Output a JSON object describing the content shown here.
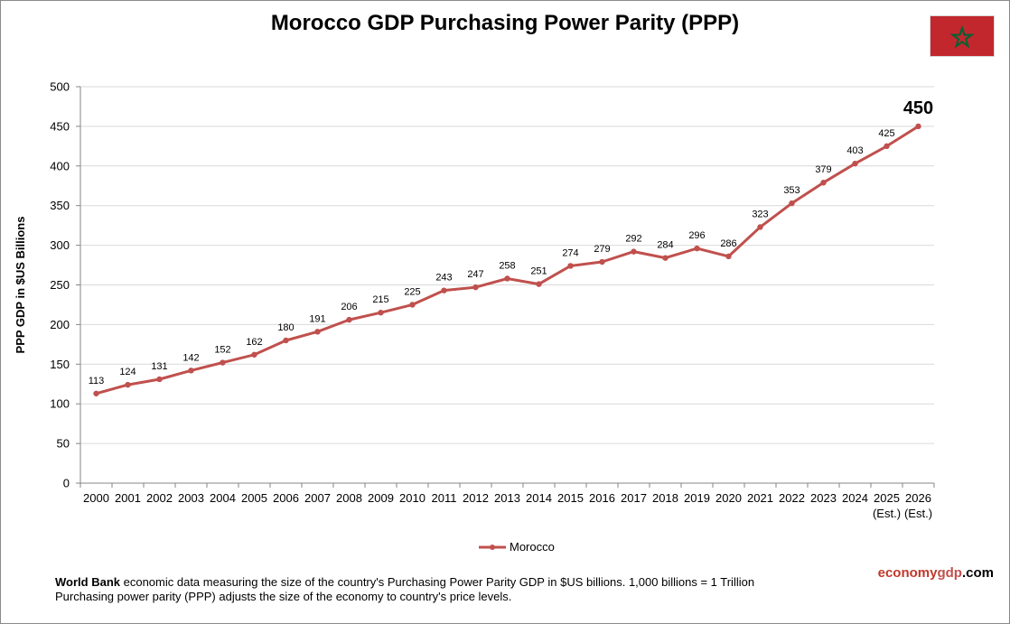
{
  "title": "Morocco GDP Purchasing Power Parity (PPP)",
  "flag": {
    "colors": {
      "field": "#c1272d",
      "star": "#006233"
    },
    "icon": "morocco-flag-icon"
  },
  "chart_data": {
    "type": "line",
    "title": "Morocco GDP Purchasing Power Parity (PPP)",
    "ylabel": "PPP GDP in $US Billions",
    "xlabel": "",
    "ylim": [
      0,
      500
    ],
    "yticks": [
      0,
      50,
      100,
      150,
      200,
      250,
      300,
      350,
      400,
      450,
      500
    ],
    "grid": true,
    "legend_position": "bottom",
    "categories": [
      "2000",
      "2001",
      "2002",
      "2003",
      "2004",
      "2005",
      "2006",
      "2007",
      "2008",
      "2009",
      "2010",
      "2011",
      "2012",
      "2013",
      "2014",
      "2015",
      "2016",
      "2017",
      "2018",
      "2019",
      "2020",
      "2021",
      "2022",
      "2023",
      "2024",
      "2025",
      "2026"
    ],
    "category_sublabels": {
      "2025": "(Est.)",
      "2026": "(Est.)"
    },
    "series": [
      {
        "name": "Morocco",
        "color": "#c0504d",
        "values": [
          113,
          124,
          131,
          142,
          152,
          162,
          180,
          191,
          206,
          215,
          225,
          243,
          247,
          258,
          251,
          274,
          279,
          292,
          284,
          296,
          286,
          323,
          353,
          379,
          403,
          425,
          450
        ],
        "labels": [
          "113",
          "124",
          "131",
          "142",
          "152",
          "162",
          "180",
          "191",
          "206",
          "215",
          "225",
          "243",
          "247",
          "258",
          "251",
          "274",
          "279",
          "292",
          "284",
          "296",
          "286",
          "323",
          "353",
          "379",
          "403",
          "425",
          "450"
        ]
      }
    ],
    "highlight_last_label": true
  },
  "legend": {
    "label": "Morocco"
  },
  "footnote": {
    "source_bold": "World Bank",
    "line1_rest": " economic data measuring the size of the country's Purchasing Power Parity GDP in $US billions. 1,000 billions = 1 Trillion",
    "line2": "Purchasing power parity (PPP) adjusts the size of the economy to country's price levels."
  },
  "brand": {
    "part1": "economy",
    "part2": "gdp",
    "part3": ".com",
    "color1": "#c0392b",
    "color2": "#c0504d",
    "color3": "#000000"
  }
}
